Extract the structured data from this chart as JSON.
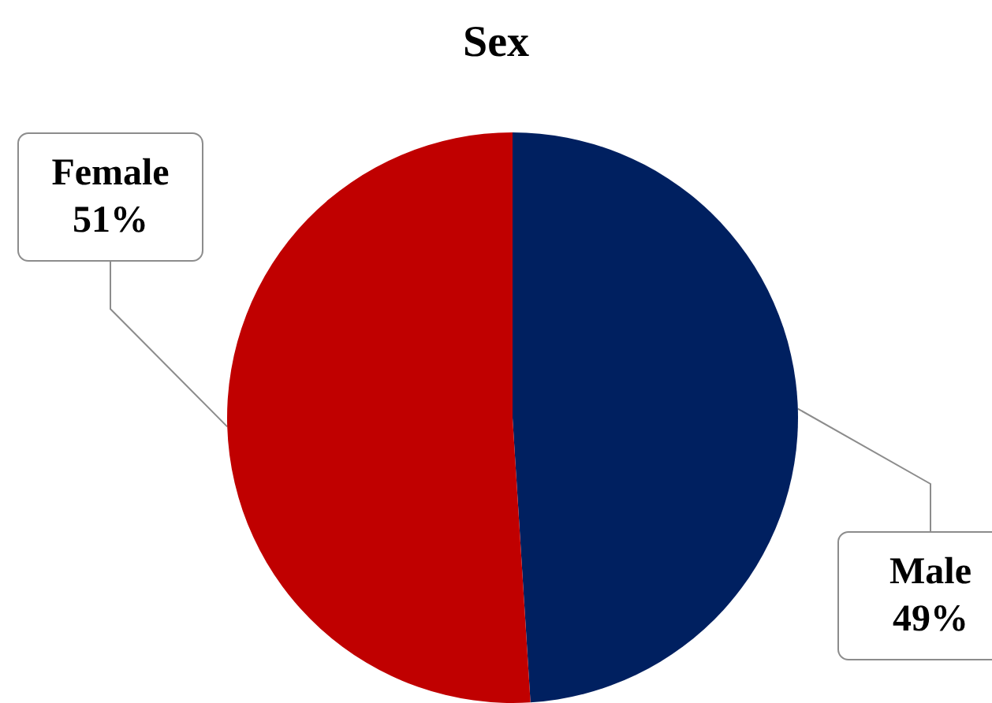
{
  "chart_data": {
    "type": "pie",
    "title": "Sex",
    "categories": [
      "Male",
      "Female"
    ],
    "values": [
      49,
      51
    ],
    "colors": [
      "#002060",
      "#c00000"
    ],
    "value_labels": [
      "49%",
      "51%"
    ],
    "legend": false
  }
}
